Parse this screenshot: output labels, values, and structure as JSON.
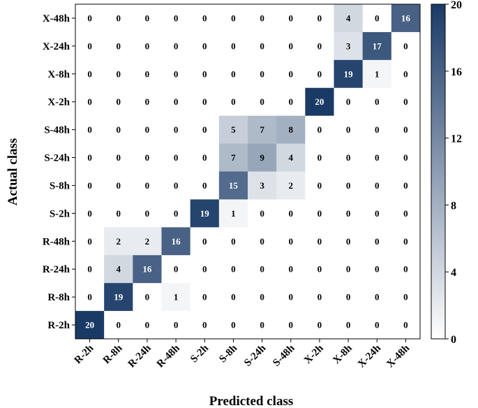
{
  "chart_data": {
    "type": "heatmap",
    "xlabel": "Predicted class",
    "ylabel": "Actual class",
    "x_categories": [
      "R-2h",
      "R-8h",
      "R-24h",
      "R-48h",
      "S-2h",
      "S-8h",
      "S-24h",
      "S-48h",
      "X-2h",
      "X-8h",
      "X-24h",
      "X-48h"
    ],
    "y_categories": [
      "X-48h",
      "X-24h",
      "X-8h",
      "X-2h",
      "S-48h",
      "S-24h",
      "S-8h",
      "S-2h",
      "R-48h",
      "R-24h",
      "R-8h",
      "R-2h"
    ],
    "values": [
      [
        0,
        0,
        0,
        0,
        0,
        0,
        0,
        0,
        0,
        4,
        0,
        16
      ],
      [
        0,
        0,
        0,
        0,
        0,
        0,
        0,
        0,
        0,
        3,
        17,
        0
      ],
      [
        0,
        0,
        0,
        0,
        0,
        0,
        0,
        0,
        0,
        19,
        1,
        0
      ],
      [
        0,
        0,
        0,
        0,
        0,
        0,
        0,
        0,
        20,
        0,
        0,
        0
      ],
      [
        0,
        0,
        0,
        0,
        0,
        5,
        7,
        8,
        0,
        0,
        0,
        0
      ],
      [
        0,
        0,
        0,
        0,
        0,
        7,
        9,
        4,
        0,
        0,
        0,
        0
      ],
      [
        0,
        0,
        0,
        0,
        0,
        15,
        3,
        2,
        0,
        0,
        0,
        0
      ],
      [
        0,
        0,
        0,
        0,
        19,
        1,
        0,
        0,
        0,
        0,
        0,
        0
      ],
      [
        0,
        2,
        2,
        16,
        0,
        0,
        0,
        0,
        0,
        0,
        0,
        0
      ],
      [
        0,
        4,
        16,
        0,
        0,
        0,
        0,
        0,
        0,
        0,
        0,
        0
      ],
      [
        0,
        19,
        0,
        1,
        0,
        0,
        0,
        0,
        0,
        0,
        0,
        0
      ],
      [
        20,
        0,
        0,
        0,
        0,
        0,
        0,
        0,
        0,
        0,
        0,
        0
      ]
    ],
    "colorbar": {
      "min": 0,
      "max": 20,
      "ticks": [
        0,
        4,
        8,
        12,
        16,
        20
      ],
      "color_low": "#ffffff",
      "color_high": "#1a3a66"
    }
  }
}
